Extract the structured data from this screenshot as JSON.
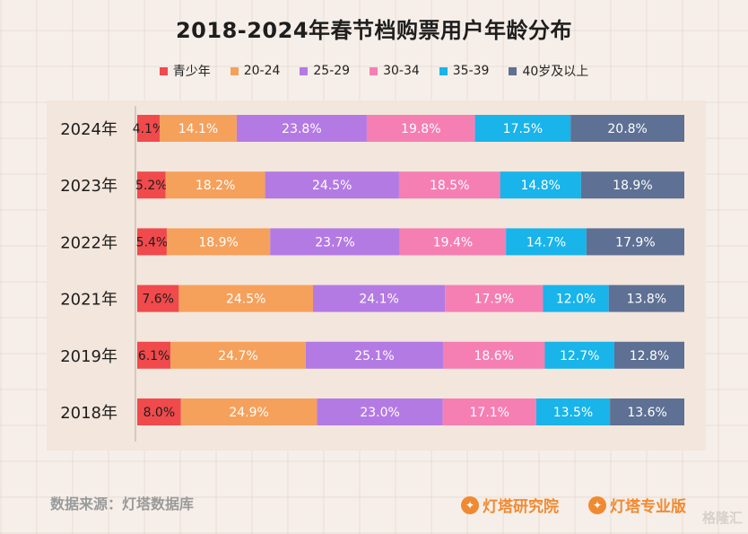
{
  "chart_data": {
    "type": "bar",
    "orientation": "horizontal",
    "stacked": true,
    "percent": true,
    "title": "2018-2024年春节档购票用户年龄分布",
    "categories": [
      "2024年",
      "2023年",
      "2022年",
      "2021年",
      "2019年",
      "2018年"
    ],
    "series": [
      {
        "name": "青少年",
        "color": "#f04a4c",
        "values": [
          4.1,
          5.2,
          5.4,
          7.6,
          6.1,
          8.0
        ]
      },
      {
        "name": "20-24",
        "color": "#f5a15c",
        "values": [
          14.1,
          18.2,
          18.9,
          24.5,
          24.7,
          24.9
        ]
      },
      {
        "name": "25-29",
        "color": "#b47ae4",
        "values": [
          23.8,
          24.5,
          23.7,
          24.1,
          25.1,
          23.0
        ]
      },
      {
        "name": "30-34",
        "color": "#f57fb3",
        "values": [
          19.8,
          18.5,
          19.4,
          17.9,
          18.6,
          17.1
        ]
      },
      {
        "name": "35-39",
        "color": "#18b4ea",
        "values": [
          17.5,
          14.8,
          14.7,
          12.0,
          12.7,
          13.5
        ]
      },
      {
        "name": "40岁及以上",
        "color": "#5e7093",
        "values": [
          20.8,
          18.9,
          17.9,
          13.8,
          12.8,
          13.6
        ]
      }
    ],
    "value_suffix": "%",
    "legend_position": "top"
  },
  "footer": {
    "source": "数据来源：灯塔数据库",
    "brand1": "灯塔研究院",
    "brand2": "灯塔专业版",
    "watermark": "格隆汇"
  }
}
